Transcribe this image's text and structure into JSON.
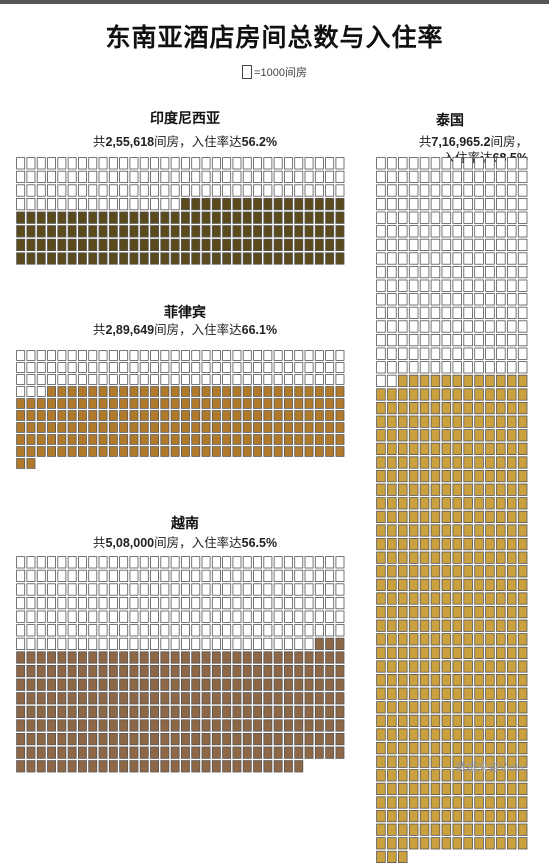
{
  "title": "东南亚酒店房间总数与入住率",
  "legend": {
    "unit_label": "=1000间房"
  },
  "source": "数据来自Videc",
  "colors": {
    "indonesia": "#5b4a1c",
    "philippines": "#b07a2a",
    "vietnam": "#8e6747",
    "thailand": "#caa13e",
    "empty_fill": "#ffffff",
    "outline": "#555555"
  },
  "chart_data": [
    {
      "type": "waffle",
      "name": "印度尼西亚",
      "stat_prefix": "共",
      "total_rooms": "2,55,618",
      "stat_mid": "间房，入住率达",
      "occupancy": "56.2%",
      "units": 256,
      "occupied_units": 144,
      "unit_value": 1000
    },
    {
      "type": "waffle",
      "name": "菲律宾",
      "stat_prefix": "共",
      "total_rooms": "2,89,649",
      "stat_mid": "间房，入住率达",
      "occupancy": "66.1%",
      "units": 290,
      "occupied_units": 191,
      "unit_value": 1000
    },
    {
      "type": "waffle",
      "name": "越南",
      "stat_prefix": "共",
      "total_rooms": "5,08,000",
      "stat_mid": "间房，入住率达",
      "occupancy": "56.5%",
      "units": 508,
      "occupied_units": 287,
      "unit_value": 1000
    },
    {
      "type": "waffle",
      "name": "泰国",
      "stat_prefix": "共",
      "total_rooms": "7,16,965.2",
      "stat_mid": "间房，",
      "stat_line2": "入住率达",
      "occupancy": "68.5%",
      "units": 717,
      "occupied_units": 491,
      "unit_value": 1000
    }
  ]
}
